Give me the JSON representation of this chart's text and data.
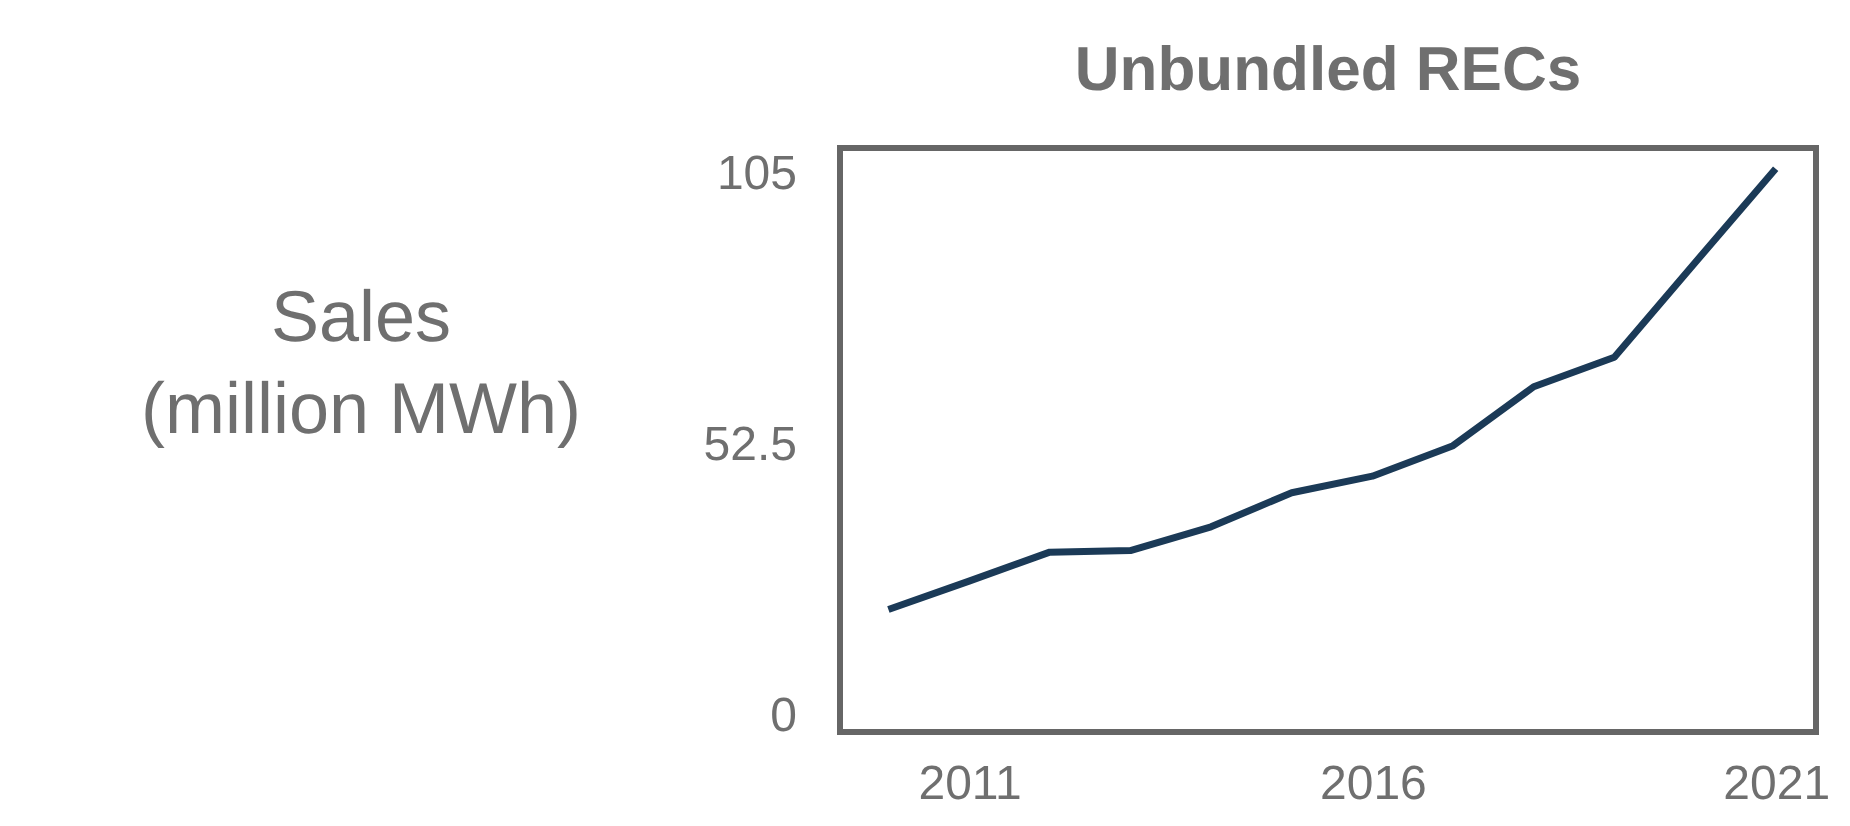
{
  "chart_data": {
    "type": "line",
    "title": "Unbundled RECs",
    "ylabel": "Sales\n(million MWh)",
    "x": [
      2010,
      2011,
      2012,
      2013,
      2014,
      2015,
      2016,
      2017,
      2018,
      2019,
      2020,
      2021
    ],
    "series": [
      {
        "color": "#1b3a57",
        "values": [
          20.7,
          26.2,
          31.8,
          32.1,
          36.7,
          43.3,
          46.5,
          52.4,
          63.8,
          69.5,
          87.8,
          106
        ]
      }
    ],
    "xlim": [
      2009.4,
      2021.5
    ],
    "xticks": [
      2011,
      2016,
      2021
    ],
    "ylim": [
      -3,
      110
    ],
    "yticks": [
      0,
      52.5,
      105
    ],
    "grid": false,
    "legend": false,
    "marker": "none",
    "line_style": "solid"
  }
}
